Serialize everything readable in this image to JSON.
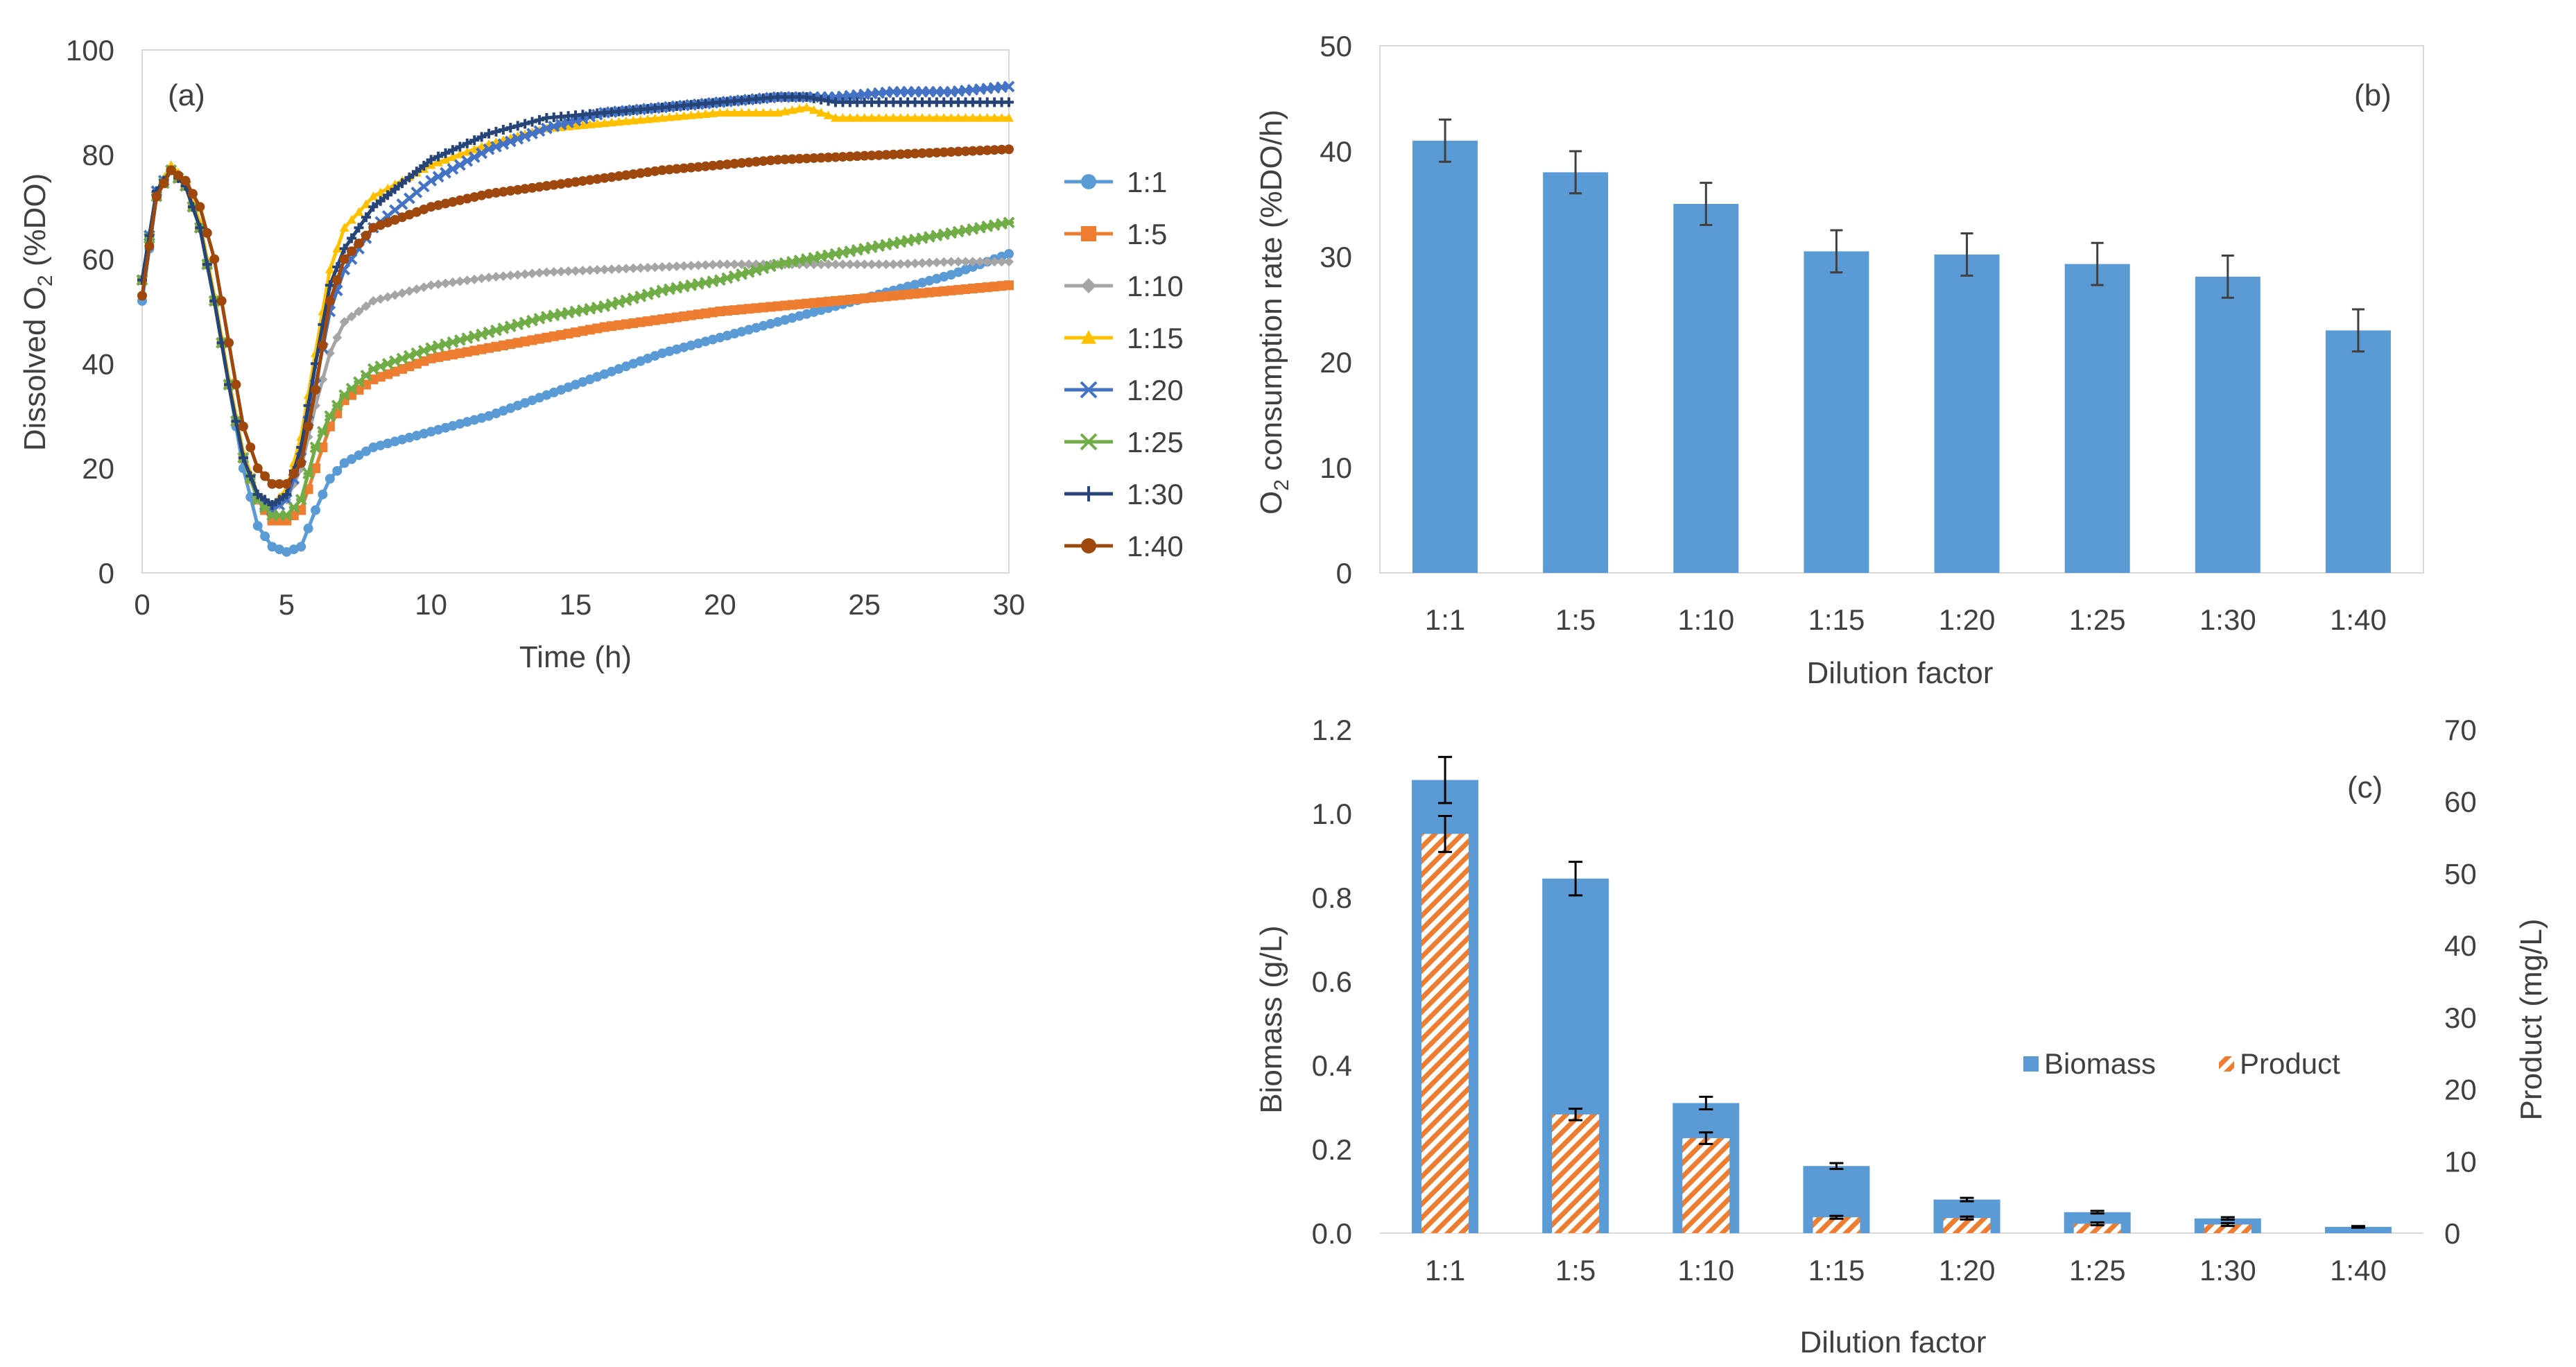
{
  "chart_data": [
    {
      "panel": "(a)",
      "type": "line",
      "xlabel": "Time (h)",
      "ylabel_main": "Dissolved O",
      "ylabel_sub": "2",
      "ylabel_tail": " (%DO)",
      "xlim": [
        0,
        30
      ],
      "ylim": [
        0,
        100
      ],
      "xticks": [
        0,
        5,
        10,
        15,
        20,
        25,
        30
      ],
      "yticks": [
        0,
        20,
        40,
        60,
        80,
        100
      ],
      "grid": false,
      "legend_position": "right",
      "series": [
        {
          "name": "1:1",
          "color": "#5B9BD5",
          "marker": "circle",
          "points": [
            [
              0,
              52
            ],
            [
              0.5,
              72
            ],
            [
              1,
              77
            ],
            [
              1.5,
              74
            ],
            [
              2,
              66
            ],
            [
              2.5,
              52
            ],
            [
              3,
              36
            ],
            [
              3.5,
              20
            ],
            [
              4,
              9
            ],
            [
              4.5,
              5
            ],
            [
              5,
              4
            ],
            [
              5.5,
              5
            ],
            [
              6,
              12
            ],
            [
              6.5,
              18
            ],
            [
              7,
              21
            ],
            [
              8,
              24
            ],
            [
              10,
              27
            ],
            [
              12,
              30
            ],
            [
              14,
              34
            ],
            [
              16,
              38
            ],
            [
              18,
              42
            ],
            [
              20,
              45
            ],
            [
              22,
              48
            ],
            [
              24,
              51
            ],
            [
              26,
              54
            ],
            [
              28,
              57
            ],
            [
              30,
              61
            ]
          ]
        },
        {
          "name": "1:5",
          "color": "#ED7D31",
          "marker": "square",
          "points": [
            [
              0,
              56
            ],
            [
              0.5,
              72
            ],
            [
              1,
              77
            ],
            [
              1.5,
              74
            ],
            [
              2,
              66
            ],
            [
              2.5,
              52
            ],
            [
              3,
              36
            ],
            [
              3.5,
              22
            ],
            [
              4,
              14
            ],
            [
              4.5,
              10
            ],
            [
              5,
              10
            ],
            [
              5.5,
              12
            ],
            [
              6,
              20
            ],
            [
              6.5,
              28
            ],
            [
              7,
              33
            ],
            [
              8,
              37
            ],
            [
              10,
              41
            ],
            [
              12,
              43
            ],
            [
              14,
              45
            ],
            [
              16,
              47
            ],
            [
              18,
              48.5
            ],
            [
              20,
              50
            ],
            [
              22,
              51
            ],
            [
              24,
              52
            ],
            [
              26,
              53
            ],
            [
              28,
              54
            ],
            [
              30,
              55
            ]
          ]
        },
        {
          "name": "1:10",
          "color": "#A5A5A5",
          "marker": "diamond",
          "points": [
            [
              0,
              56
            ],
            [
              0.5,
              73
            ],
            [
              1,
              77
            ],
            [
              1.5,
              74
            ],
            [
              2,
              66
            ],
            [
              2.5,
              52
            ],
            [
              3,
              36
            ],
            [
              3.5,
              22
            ],
            [
              4,
              14
            ],
            [
              4.5,
              12
            ],
            [
              5,
              14
            ],
            [
              5.5,
              20
            ],
            [
              6,
              32
            ],
            [
              6.5,
              42
            ],
            [
              7,
              48
            ],
            [
              8,
              52
            ],
            [
              10,
              55
            ],
            [
              12,
              56.5
            ],
            [
              14,
              57.5
            ],
            [
              16,
              58
            ],
            [
              18,
              58.5
            ],
            [
              20,
              59
            ],
            [
              22,
              59
            ],
            [
              24,
              59
            ],
            [
              26,
              59
            ],
            [
              28,
              59.5
            ],
            [
              30,
              59.5
            ]
          ]
        },
        {
          "name": "1:15",
          "color": "#FFC000",
          "marker": "triangle",
          "points": [
            [
              0,
              56
            ],
            [
              0.5,
              73
            ],
            [
              1,
              78
            ],
            [
              1.5,
              75
            ],
            [
              2,
              67
            ],
            [
              2.5,
              53
            ],
            [
              3,
              37
            ],
            [
              3.5,
              23
            ],
            [
              4,
              15
            ],
            [
              4.5,
              13
            ],
            [
              5,
              16
            ],
            [
              5.5,
              26
            ],
            [
              6,
              42
            ],
            [
              6.5,
              58
            ],
            [
              7,
              66
            ],
            [
              8,
              72
            ],
            [
              10,
              78
            ],
            [
              12,
              82
            ],
            [
              14,
              85
            ],
            [
              16,
              86
            ],
            [
              18,
              87
            ],
            [
              20,
              88
            ],
            [
              22,
              88
            ],
            [
              23,
              89
            ],
            [
              24,
              87
            ],
            [
              26,
              87
            ],
            [
              28,
              87
            ],
            [
              30,
              87
            ]
          ]
        },
        {
          "name": "1:20",
          "color": "#4472C4",
          "marker": "x",
          "points": [
            [
              0,
              56
            ],
            [
              0.5,
              73
            ],
            [
              1,
              77
            ],
            [
              1.5,
              74
            ],
            [
              2,
              66
            ],
            [
              2.5,
              52
            ],
            [
              3,
              36
            ],
            [
              3.5,
              22
            ],
            [
              4,
              14
            ],
            [
              4.5,
              12
            ],
            [
              5,
              14
            ],
            [
              5.5,
              22
            ],
            [
              6,
              36
            ],
            [
              6.5,
              50
            ],
            [
              7,
              58
            ],
            [
              8,
              66
            ],
            [
              10,
              75
            ],
            [
              12,
              81
            ],
            [
              14,
              85
            ],
            [
              16,
              88
            ],
            [
              18,
              89
            ],
            [
              20,
              90
            ],
            [
              22,
              91
            ],
            [
              24,
              91
            ],
            [
              26,
              92
            ],
            [
              28,
              92
            ],
            [
              30,
              93
            ]
          ]
        },
        {
          "name": "1:25",
          "color": "#70AD47",
          "marker": "star",
          "points": [
            [
              0,
              56
            ],
            [
              0.5,
              72
            ],
            [
              1,
              77
            ],
            [
              1.5,
              74
            ],
            [
              2,
              66
            ],
            [
              2.5,
              52
            ],
            [
              3,
              36
            ],
            [
              3.5,
              22
            ],
            [
              4,
              14
            ],
            [
              4.5,
              11
            ],
            [
              5,
              11
            ],
            [
              5.5,
              14
            ],
            [
              6,
              24
            ],
            [
              6.5,
              30
            ],
            [
              7,
              34
            ],
            [
              8,
              39
            ],
            [
              10,
              43
            ],
            [
              12,
              46
            ],
            [
              14,
              49
            ],
            [
              16,
              51
            ],
            [
              18,
              54
            ],
            [
              20,
              56
            ],
            [
              22,
              59
            ],
            [
              24,
              61
            ],
            [
              26,
              63
            ],
            [
              28,
              65
            ],
            [
              30,
              67
            ]
          ]
        },
        {
          "name": "1:30",
          "color": "#264478",
          "marker": "plus",
          "points": [
            [
              0,
              56
            ],
            [
              0.5,
              73
            ],
            [
              1,
              77
            ],
            [
              1.5,
              74
            ],
            [
              2,
              66
            ],
            [
              2.5,
              52
            ],
            [
              3,
              36
            ],
            [
              3.5,
              22
            ],
            [
              4,
              15
            ],
            [
              4.5,
              13
            ],
            [
              5,
              15
            ],
            [
              5.5,
              24
            ],
            [
              6,
              40
            ],
            [
              6.5,
              55
            ],
            [
              7,
              62
            ],
            [
              8,
              70
            ],
            [
              10,
              79
            ],
            [
              12,
              84
            ],
            [
              14,
              87
            ],
            [
              16,
              88
            ],
            [
              18,
              89
            ],
            [
              20,
              90
            ],
            [
              22,
              91
            ],
            [
              23,
              91
            ],
            [
              24,
              90
            ],
            [
              26,
              90
            ],
            [
              28,
              90
            ],
            [
              30,
              90
            ]
          ]
        },
        {
          "name": "1:40",
          "color": "#9E480E",
          "marker": "circle",
          "points": [
            [
              0,
              53
            ],
            [
              0.5,
              72
            ],
            [
              1,
              77
            ],
            [
              1.5,
              75
            ],
            [
              2,
              70
            ],
            [
              2.5,
              60
            ],
            [
              3,
              44
            ],
            [
              3.5,
              28
            ],
            [
              4,
              20
            ],
            [
              4.5,
              17
            ],
            [
              5,
              17
            ],
            [
              5.5,
              21
            ],
            [
              6,
              35
            ],
            [
              6.5,
              52
            ],
            [
              7,
              60
            ],
            [
              8,
              66
            ],
            [
              10,
              70
            ],
            [
              12,
              72.5
            ],
            [
              14,
              74
            ],
            [
              16,
              75.5
            ],
            [
              18,
              77
            ],
            [
              20,
              78
            ],
            [
              22,
              79
            ],
            [
              24,
              79.5
            ],
            [
              26,
              80
            ],
            [
              28,
              80.5
            ],
            [
              30,
              81
            ]
          ]
        }
      ]
    },
    {
      "panel": "(b)",
      "type": "bar",
      "xlabel": "Dilution factor",
      "ylabel_pre": "O",
      "ylabel_sub": "2",
      "ylabel_tail": " consumption rate (%DO/h)",
      "ylim": [
        0,
        50
      ],
      "yticks": [
        0,
        10,
        20,
        30,
        40,
        50
      ],
      "grid": false,
      "bar_color": "#5B9BD5",
      "categories": [
        "1:1",
        "1:5",
        "1:10",
        "1:15",
        "1:20",
        "1:25",
        "1:30",
        "1:40"
      ],
      "values": [
        41,
        38,
        35,
        30.5,
        30.2,
        29.3,
        28.1,
        23
      ],
      "errors": [
        2,
        2,
        2,
        2,
        2,
        2,
        2,
        2
      ]
    },
    {
      "panel": "(c)",
      "type": "bar",
      "xlabel": "Dilution factor",
      "ylabel_left": "Biomass (g/L)",
      "ylabel_right": "Product (mg/L)",
      "ylim_left": [
        0,
        1.2
      ],
      "ylim_right": [
        0,
        70
      ],
      "yticks_left": [
        "0.0",
        "0.2",
        "0.4",
        "0.6",
        "0.8",
        "1.0",
        "1.2"
      ],
      "yticks_right": [
        0,
        10,
        20,
        30,
        40,
        50,
        60,
        70
      ],
      "legend_position": "center-right",
      "categories": [
        "1:1",
        "1:5",
        "1:10",
        "1:15",
        "1:20",
        "1:25",
        "1:30",
        "1:40"
      ],
      "series": [
        {
          "name": "Biomass",
          "axis": "left",
          "color": "#5B9BD5",
          "values": [
            1.08,
            0.845,
            0.31,
            0.16,
            0.08,
            0.05,
            0.035,
            0.015
          ],
          "errors": [
            0.055,
            0.04,
            0.015,
            0.007,
            0.004,
            0.003,
            0.003,
            0.002
          ]
        },
        {
          "name": "Product",
          "axis": "right",
          "color": "#ED7D31",
          "pattern": "diagonal-hatch",
          "values": [
            55.5,
            16.5,
            13.2,
            2.2,
            2.1,
            1.3,
            1.2,
            0
          ],
          "errors": [
            2.5,
            0.8,
            0.8,
            0.2,
            0.2,
            0.2,
            0.2,
            0
          ]
        }
      ]
    }
  ]
}
